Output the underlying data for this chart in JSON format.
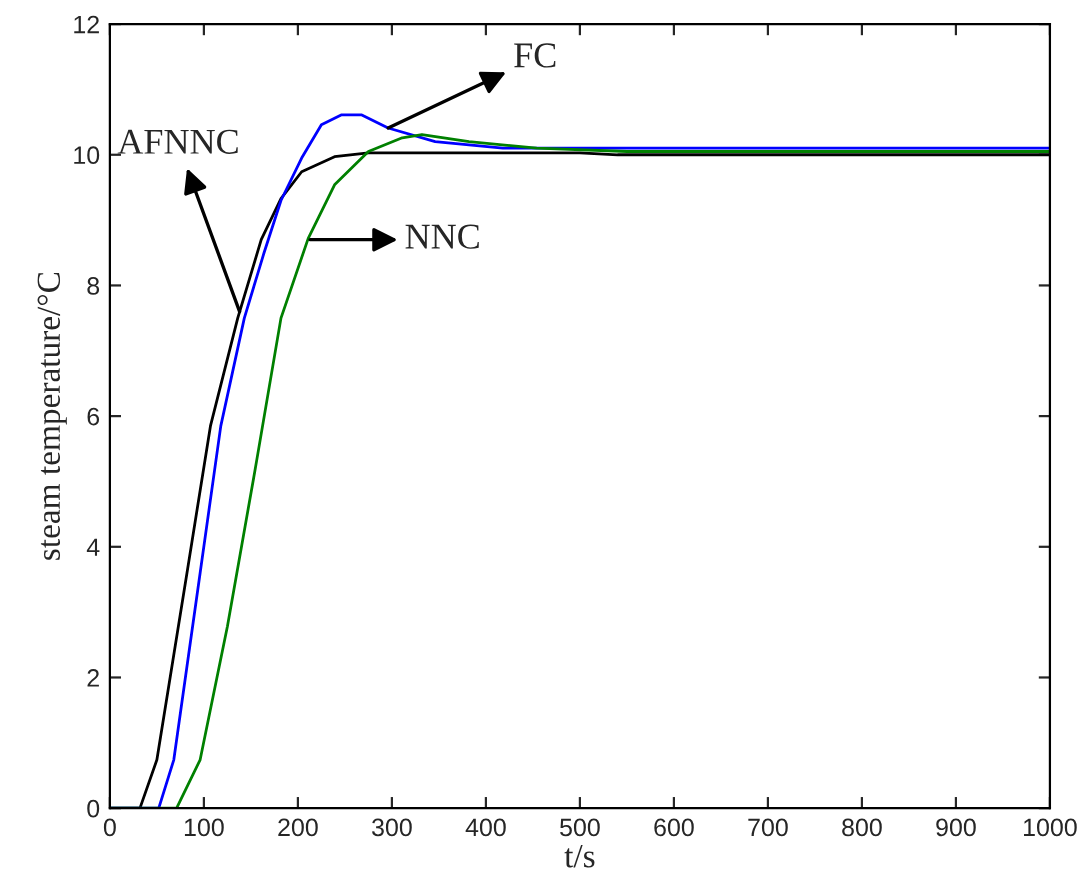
{
  "chart_data": {
    "type": "line",
    "xlabel": "t/s",
    "ylabel": "steam temperature/°C",
    "xlim": [
      0,
      1000
    ],
    "ylim": [
      0,
      12
    ],
    "xticks": [
      0,
      100,
      200,
      300,
      400,
      500,
      600,
      700,
      800,
      900,
      1000
    ],
    "yticks": [
      0,
      2,
      4,
      6,
      8,
      10,
      12
    ],
    "grid": false,
    "legend": false,
    "marker": "none",
    "line_style": "solid",
    "series": [
      {
        "color": "#000000",
        "x": [
          0,
          32,
          50,
          82,
          107,
          136,
          161,
          182,
          204,
          239,
          275,
          500,
          540,
          1000
        ],
        "values": [
          0,
          0,
          0.74,
          3.6,
          5.85,
          7.5,
          8.7,
          9.33,
          9.74,
          9.97,
          10.03,
          10.03,
          10.0,
          10.0
        ]
      },
      {
        "color": "#0000ff",
        "x": [
          0,
          52,
          68,
          96,
          118,
          143,
          164,
          182,
          204,
          225,
          246,
          268,
          296,
          346,
          418,
          1000
        ],
        "values": [
          0,
          0,
          0.74,
          3.6,
          5.85,
          7.5,
          8.5,
          9.3,
          9.95,
          10.46,
          10.61,
          10.61,
          10.41,
          10.2,
          10.1,
          10.1
        ]
      },
      {
        "color": "#008000",
        "x": [
          0,
          71,
          96,
          125,
          154,
          182,
          211,
          239,
          275,
          311,
          332,
          382,
          454,
          550,
          1000
        ],
        "values": [
          0,
          0,
          0.74,
          2.78,
          5.14,
          7.5,
          8.72,
          9.54,
          10.05,
          10.26,
          10.31,
          10.2,
          10.1,
          10.05,
          10.05
        ]
      }
    ],
    "annotations": [
      {
        "text": "FC",
        "x": 296,
        "y": 10.41
      },
      {
        "text": "AFNNC",
        "x": 138,
        "y": 7.6
      },
      {
        "text": "NNC",
        "x": 213,
        "y": 8.7
      }
    ]
  }
}
